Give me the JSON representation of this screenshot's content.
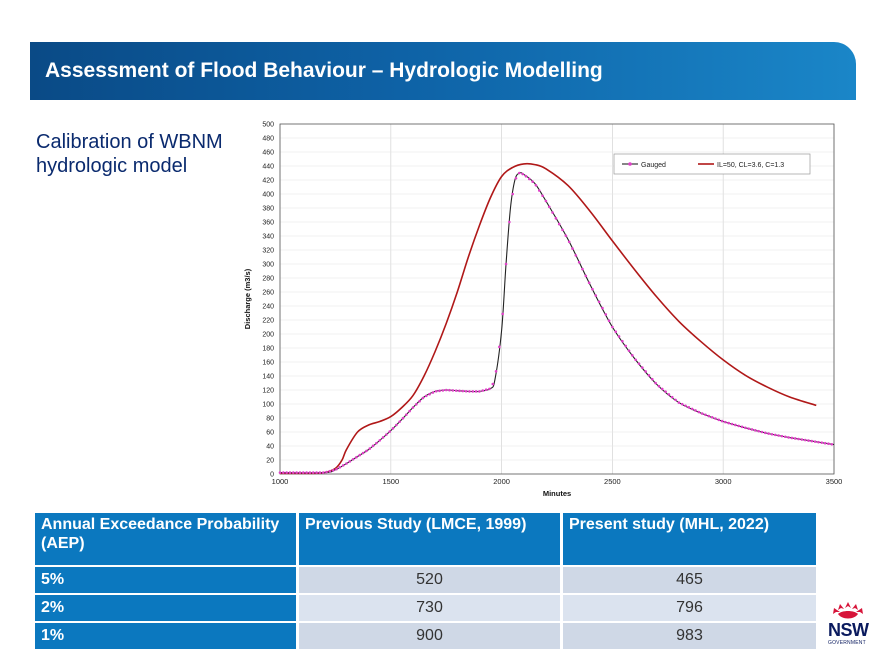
{
  "slide": {
    "title": "Assessment of Flood Behaviour – Hydrologic Modelling",
    "subtitle": "Calibration of WBNM hydrologic model"
  },
  "chart_data": {
    "type": "line",
    "xlabel": "Minutes",
    "ylabel": "Discharge (m3/s)",
    "xlim": [
      1000,
      3500
    ],
    "ylim": [
      0,
      500
    ],
    "xticks": [
      "1000",
      "1500",
      "2000",
      "2500",
      "3000",
      "3500"
    ],
    "yticks": [
      "0",
      "20",
      "40",
      "60",
      "80",
      "100",
      "120",
      "140",
      "160",
      "180",
      "200",
      "220",
      "240",
      "260",
      "280",
      "300",
      "320",
      "340",
      "360",
      "380",
      "400",
      "420",
      "440",
      "460",
      "480",
      "500"
    ],
    "grid": true,
    "legend_position": "top-right",
    "series": [
      {
        "name": "Gauged",
        "color": "#222222",
        "marker_color": "#e040c8",
        "x": [
          1000,
          1200,
          1250,
          1300,
          1350,
          1400,
          1450,
          1500,
          1550,
          1600,
          1650,
          1700,
          1750,
          1800,
          1850,
          1900,
          1950,
          1970,
          2000,
          2020,
          2040,
          2060,
          2080,
          2100,
          2150,
          2200,
          2300,
          2400,
          2500,
          2600,
          2700,
          2800,
          2900,
          3000,
          3100,
          3200,
          3300,
          3400,
          3500
        ],
        "y": [
          2,
          2,
          6,
          15,
          25,
          35,
          48,
          62,
          78,
          95,
          110,
          118,
          120,
          119,
          118,
          118,
          122,
          135,
          205,
          300,
          380,
          420,
          430,
          428,
          415,
          390,
          335,
          270,
          210,
          165,
          128,
          102,
          87,
          75,
          66,
          58,
          52,
          47,
          42
        ]
      },
      {
        "name": "IL=50, CL=3.6, C=1.3",
        "color": "#b01818",
        "x": [
          1000,
          1150,
          1200,
          1250,
          1280,
          1300,
          1350,
          1400,
          1450,
          1500,
          1550,
          1600,
          1650,
          1700,
          1750,
          1800,
          1850,
          1900,
          1950,
          2000,
          2050,
          2100,
          2150,
          2200,
          2300,
          2400,
          2500,
          2600,
          2700,
          2800,
          2900,
          3000,
          3100,
          3200,
          3300,
          3420
        ],
        "y": [
          1,
          1,
          2,
          8,
          20,
          35,
          60,
          70,
          75,
          82,
          95,
          112,
          140,
          175,
          215,
          260,
          310,
          355,
          395,
          425,
          438,
          443,
          442,
          436,
          412,
          375,
          333,
          292,
          253,
          218,
          189,
          163,
          141,
          124,
          110,
          98
        ]
      }
    ]
  },
  "table": {
    "headers": [
      "Annual Exceedance Probability (AEP)",
      "Previous Study (LMCE, 1999)",
      "Present study (MHL, 2022)"
    ],
    "rows": [
      [
        "5%",
        "520",
        "465"
      ],
      [
        "2%",
        "730",
        "796"
      ],
      [
        "1%",
        "900",
        "983"
      ]
    ]
  },
  "logo": {
    "text": "NSW",
    "subtext": "GOVERNMENT",
    "color": "#d7153a"
  }
}
